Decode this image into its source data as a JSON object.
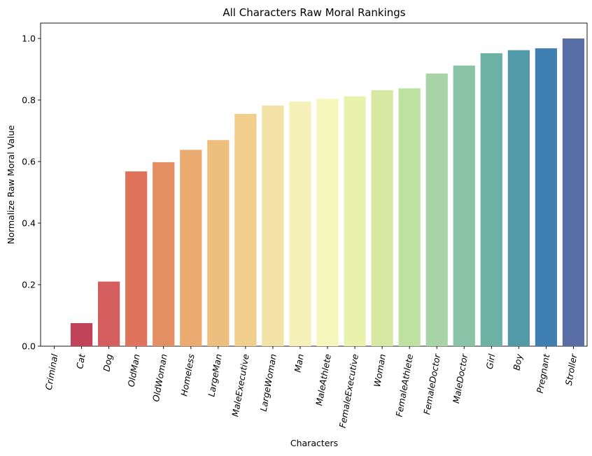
{
  "chart_data": {
    "type": "bar",
    "title": "All Characters Raw Moral Rankings",
    "xlabel": "Characters",
    "ylabel": "Normalize Raw Moral Value",
    "ylim": [
      0,
      1.05
    ],
    "yticks": [
      "0.0",
      "0.2",
      "0.4",
      "0.6",
      "0.8",
      "1.0"
    ],
    "grid": false,
    "categories": [
      "Criminal",
      "Cat",
      "Dog",
      "OldMan",
      "OldWoman",
      "Homeless",
      "LargeMan",
      "MaleExecutive",
      "LargeWoman",
      "Man",
      "MaleAthlete",
      "FemaleExecutive",
      "Woman",
      "FemaleAthlete",
      "FemaleDoctor",
      "MaleDoctor",
      "Girl",
      "Boy",
      "Pregnant",
      "Stroller"
    ],
    "values": [
      0.0,
      0.075,
      0.21,
      0.568,
      0.598,
      0.638,
      0.67,
      0.755,
      0.782,
      0.795,
      0.804,
      0.812,
      0.832,
      0.838,
      0.886,
      0.912,
      0.952,
      0.962,
      0.968,
      1.0
    ],
    "colors": [
      "#9e0142",
      "#c0435a",
      "#d45d5d",
      "#e0735c",
      "#e48f63",
      "#ebaa70",
      "#edbf7f",
      "#f0cf8c",
      "#f3e2a5",
      "#f6f1b9",
      "#f5f7bc",
      "#e8f2ad",
      "#d6e8a1",
      "#bfe1a0",
      "#a8d3a7",
      "#89c4a7",
      "#6bb2a5",
      "#539aa9",
      "#3f7fb1",
      "#586ea5"
    ]
  }
}
